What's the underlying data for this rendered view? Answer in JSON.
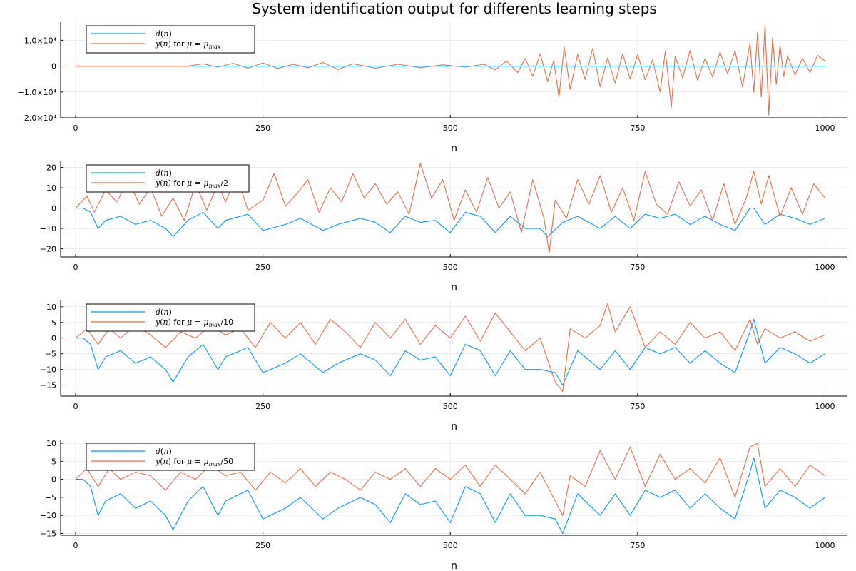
{
  "colors": {
    "d": "#009AFA",
    "y": "#E26F46",
    "grid": "#e6e6e6",
    "axis": "#000000"
  },
  "chart_data": [
    {
      "type": "line",
      "title": "System identification output for differents learning steps",
      "xlabel": "n",
      "ylabel": "",
      "xlim": [
        -20,
        1030
      ],
      "ylim": [
        -20000,
        17000
      ],
      "xticks": [
        0,
        250,
        500,
        750,
        1000
      ],
      "xtick_labels": [
        "0",
        "250",
        "500",
        "750",
        "1000"
      ],
      "yticks": [
        10000,
        0,
        -10000,
        -20000
      ],
      "ytick_labels": [
        "1.0×10⁴",
        "0",
        "−1.0×10⁴",
        "−2.0×10⁴"
      ],
      "grid": true,
      "legend": "top-left",
      "series": [
        {
          "name": "d(n)",
          "x": [
            0,
            1000
          ],
          "y": [
            0,
            0
          ]
        },
        {
          "name": "y(n) for μ = μmax",
          "x": [
            0,
            150,
            170,
            190,
            210,
            230,
            250,
            270,
            290,
            310,
            330,
            350,
            370,
            400,
            430,
            460,
            490,
            520,
            545,
            560,
            575,
            590,
            600,
            610,
            620,
            630,
            638,
            645,
            652,
            660,
            670,
            680,
            690,
            700,
            710,
            720,
            730,
            740,
            750,
            760,
            770,
            780,
            787,
            795,
            800,
            810,
            820,
            830,
            840,
            850,
            860,
            870,
            880,
            890,
            900,
            905,
            910,
            915,
            920,
            925,
            930,
            935,
            940,
            945,
            950,
            960,
            970,
            980,
            990,
            1000
          ],
          "y": [
            0,
            0,
            900,
            -400,
            1100,
            -800,
            1200,
            -900,
            700,
            -600,
            1400,
            -1300,
            900,
            -800,
            700,
            -600,
            500,
            -400,
            700,
            -1500,
            2000,
            -2500,
            3000,
            -4000,
            4800,
            -6000,
            2200,
            -12000,
            7500,
            -9000,
            4500,
            -5200,
            6800,
            -8000,
            3200,
            -6500,
            4700,
            -5000,
            4500,
            -5300,
            2400,
            -10000,
            5800,
            -16000,
            3700,
            -4500,
            6000,
            -5500,
            3000,
            -4200,
            5400,
            -3000,
            6000,
            -8000,
            9000,
            -10000,
            13000,
            -12000,
            16000,
            -19000,
            11000,
            -7000,
            8000,
            -4000,
            4000,
            -3500,
            3000,
            -2500,
            4200,
            2000
          ]
        }
      ]
    },
    {
      "type": "line",
      "title": "",
      "xlabel": "n",
      "ylabel": "",
      "xlim": [
        -20,
        1030
      ],
      "ylim": [
        -24,
        23
      ],
      "xticks": [
        0,
        250,
        500,
        750,
        1000
      ],
      "xtick_labels": [
        "0",
        "250",
        "500",
        "750",
        "1000"
      ],
      "yticks": [
        20,
        10,
        0,
        -10,
        -20
      ],
      "ytick_labels": [
        "20",
        "10",
        "0",
        "−10",
        "−20"
      ],
      "grid": true,
      "legend": "top-left",
      "series": [
        {
          "name": "d(n)",
          "x": [
            0,
            10,
            20,
            30,
            40,
            60,
            80,
            100,
            120,
            130,
            150,
            170,
            190,
            200,
            230,
            250,
            280,
            300,
            330,
            350,
            380,
            400,
            420,
            440,
            460,
            480,
            500,
            520,
            540,
            560,
            580,
            600,
            620,
            630,
            650,
            670,
            700,
            720,
            740,
            760,
            780,
            800,
            820,
            840,
            860,
            880,
            900,
            905,
            920,
            940,
            960,
            980,
            1000
          ],
          "y": [
            0,
            0,
            -2,
            -10,
            -6,
            -4,
            -8,
            -6,
            -10,
            -14,
            -6,
            -2,
            -10,
            -6,
            -3,
            -11,
            -8,
            -5,
            -11,
            -8,
            -5,
            -7,
            -12,
            -4,
            -7,
            -6,
            -12,
            -2,
            -4,
            -12,
            -4,
            -10,
            -10,
            -14,
            -7,
            -4,
            -10,
            -4,
            -10,
            -3,
            -5,
            -3,
            -8,
            -4,
            -8,
            -11,
            0,
            0,
            -8,
            -3,
            -5,
            -8,
            -5
          ]
        },
        {
          "name": "y(n) for μ = μmax/2",
          "x": [
            0,
            15,
            25,
            40,
            55,
            70,
            85,
            100,
            115,
            130,
            145,
            160,
            175,
            190,
            200,
            215,
            230,
            250,
            265,
            280,
            295,
            310,
            325,
            340,
            355,
            370,
            385,
            400,
            415,
            430,
            445,
            460,
            475,
            490,
            505,
            520,
            535,
            550,
            565,
            580,
            595,
            610,
            625,
            632,
            640,
            655,
            670,
            685,
            700,
            715,
            730,
            745,
            760,
            775,
            790,
            805,
            820,
            835,
            850,
            865,
            880,
            895,
            905,
            915,
            925,
            940,
            955,
            970,
            985,
            1000
          ],
          "y": [
            0,
            6,
            -2,
            9,
            3,
            14,
            2,
            10,
            -4,
            5,
            -6,
            12,
            -1,
            12,
            3,
            16,
            -1,
            4,
            17,
            1,
            7,
            14,
            -2,
            10,
            3,
            17,
            5,
            12,
            2,
            8,
            -3,
            22,
            5,
            14,
            -6,
            9,
            -2,
            15,
            0,
            8,
            -12,
            14,
            -5,
            -22,
            4,
            -5,
            14,
            2,
            16,
            -2,
            10,
            -6,
            18,
            2,
            -3,
            13,
            1,
            9,
            -6,
            12,
            -8,
            5,
            18,
            2,
            16,
            -4,
            10,
            -3,
            12,
            5
          ]
        }
      ]
    },
    {
      "type": "line",
      "title": "",
      "xlabel": "n",
      "ylabel": "",
      "xlim": [
        -20,
        1030
      ],
      "ylim": [
        -18.5,
        12
      ],
      "xticks": [
        0,
        250,
        500,
        750,
        1000
      ],
      "xtick_labels": [
        "0",
        "250",
        "500",
        "750",
        "1000"
      ],
      "yticks": [
        10,
        5,
        0,
        -5,
        -10,
        -15
      ],
      "ytick_labels": [
        "10",
        "5",
        "0",
        "−5",
        "−10",
        "−15"
      ],
      "grid": true,
      "legend": "top-left",
      "series": [
        {
          "name": "d(n)",
          "x": [
            0,
            10,
            20,
            30,
            40,
            60,
            80,
            100,
            120,
            130,
            150,
            170,
            190,
            200,
            230,
            250,
            280,
            300,
            330,
            350,
            380,
            400,
            420,
            440,
            460,
            480,
            500,
            520,
            540,
            560,
            580,
            600,
            620,
            640,
            650,
            670,
            700,
            720,
            740,
            760,
            780,
            800,
            820,
            840,
            860,
            880,
            900,
            905,
            920,
            940,
            960,
            980,
            1000
          ],
          "y": [
            0,
            0,
            -2,
            -10,
            -6,
            -4,
            -8,
            -6,
            -10,
            -14,
            -6,
            -2,
            -10,
            -6,
            -3,
            -11,
            -8,
            -5,
            -11,
            -8,
            -5,
            -7,
            -12,
            -4,
            -7,
            -6,
            -12,
            -2,
            -4,
            -12,
            -4,
            -10,
            -10,
            -11,
            -15,
            -4,
            -10,
            -4,
            -10,
            -3,
            -5,
            -3,
            -8,
            -4,
            -8,
            -11,
            2,
            6,
            -8,
            -3,
            -5,
            -8,
            -5
          ]
        },
        {
          "name": "y(n) for μ = μmax/10",
          "x": [
            0,
            15,
            30,
            45,
            60,
            80,
            100,
            120,
            140,
            160,
            180,
            200,
            220,
            240,
            260,
            280,
            300,
            320,
            340,
            360,
            380,
            400,
            420,
            440,
            460,
            480,
            500,
            520,
            540,
            560,
            580,
            600,
            620,
            640,
            650,
            660,
            680,
            700,
            710,
            720,
            740,
            760,
            780,
            800,
            820,
            840,
            860,
            880,
            900,
            910,
            920,
            940,
            960,
            980,
            1000
          ],
          "y": [
            0,
            3,
            -2,
            3,
            0,
            4,
            1,
            -3,
            2,
            0,
            4,
            1,
            3,
            -3,
            5,
            0,
            5,
            -2,
            6,
            2,
            -3,
            5,
            0,
            6,
            -2,
            4,
            0,
            7,
            -1,
            8,
            2,
            -4,
            0,
            -14,
            -17,
            3,
            0,
            4,
            11,
            2,
            10,
            -3,
            2,
            -2,
            5,
            0,
            2,
            -4,
            6,
            -2,
            3,
            0,
            2,
            -1,
            1
          ]
        }
      ]
    },
    {
      "type": "line",
      "title": "",
      "xlabel": "n",
      "ylabel": "",
      "xlim": [
        -20,
        1030
      ],
      "ylim": [
        -15.5,
        11
      ],
      "xticks": [
        0,
        250,
        500,
        750,
        1000
      ],
      "xtick_labels": [
        "0",
        "250",
        "500",
        "750",
        "1000"
      ],
      "yticks": [
        10,
        5,
        0,
        -5,
        -10,
        -15
      ],
      "ytick_labels": [
        "10",
        "5",
        "0",
        "−5",
        "−10",
        "−15"
      ],
      "grid": true,
      "legend": "top-left",
      "series": [
        {
          "name": "d(n)",
          "x": [
            0,
            10,
            20,
            30,
            40,
            60,
            80,
            100,
            120,
            130,
            150,
            170,
            190,
            200,
            230,
            250,
            280,
            300,
            330,
            350,
            380,
            400,
            420,
            440,
            460,
            480,
            500,
            520,
            540,
            560,
            580,
            600,
            620,
            640,
            650,
            670,
            700,
            720,
            740,
            760,
            780,
            800,
            820,
            840,
            860,
            880,
            900,
            905,
            920,
            940,
            960,
            980,
            1000
          ],
          "y": [
            0,
            0,
            -2,
            -10,
            -6,
            -4,
            -8,
            -6,
            -10,
            -14,
            -6,
            -2,
            -10,
            -6,
            -3,
            -11,
            -8,
            -5,
            -11,
            -8,
            -5,
            -7,
            -12,
            -4,
            -7,
            -6,
            -12,
            -2,
            -4,
            -12,
            -4,
            -10,
            -10,
            -11,
            -15,
            -4,
            -10,
            -4,
            -10,
            -3,
            -5,
            -3,
            -8,
            -4,
            -8,
            -11,
            2,
            6,
            -8,
            -3,
            -5,
            -8,
            -5
          ]
        },
        {
          "name": "y(n) for μ = μmax/50",
          "x": [
            0,
            15,
            30,
            45,
            60,
            80,
            100,
            120,
            140,
            160,
            180,
            200,
            220,
            240,
            260,
            280,
            300,
            320,
            340,
            360,
            380,
            400,
            420,
            440,
            460,
            480,
            500,
            520,
            540,
            560,
            580,
            600,
            620,
            640,
            650,
            660,
            680,
            700,
            720,
            740,
            760,
            780,
            800,
            820,
            840,
            860,
            880,
            900,
            910,
            920,
            940,
            960,
            980,
            1000
          ],
          "y": [
            0,
            3,
            -2,
            3,
            0,
            2,
            1,
            -3,
            2,
            0,
            4,
            1,
            2,
            -3,
            2,
            -1,
            3,
            -2,
            2,
            0,
            -3,
            2,
            0,
            3,
            -2,
            3,
            0,
            4,
            -2,
            4,
            0,
            -4,
            2,
            -6,
            -10,
            1,
            -2,
            8,
            0,
            9,
            -2,
            7,
            0,
            3,
            -1,
            6,
            -5,
            9,
            10,
            -2,
            3,
            -2,
            4,
            1
          ]
        }
      ]
    }
  ]
}
